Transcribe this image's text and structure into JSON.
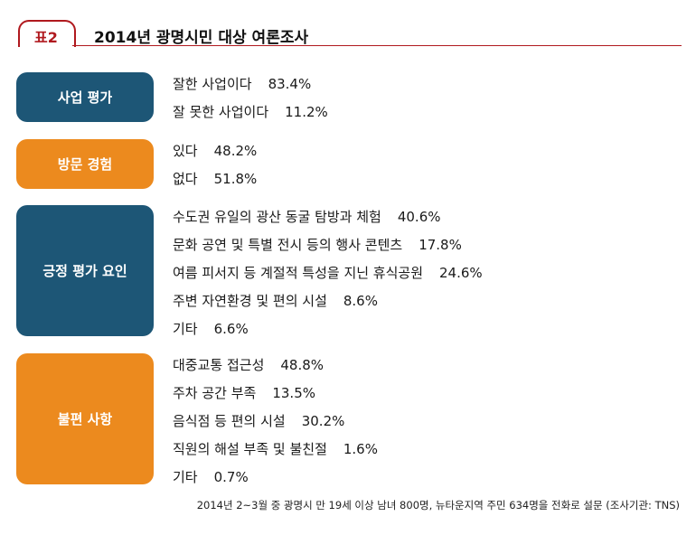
{
  "header": {
    "label": "표2",
    "title": "2014년 광명시민 대상 여론조사",
    "accent_color": "#b0191e"
  },
  "colors": {
    "navy": "#1d5676",
    "orange": "#ec8a1e"
  },
  "sections": [
    {
      "label": "사업 평가",
      "color": "navy",
      "items": [
        {
          "text": "잘한 사업이다",
          "pct": "83.4%"
        },
        {
          "text": "잘 못한 사업이다",
          "pct": "11.2%"
        }
      ]
    },
    {
      "label": "방문 경험",
      "color": "orange",
      "items": [
        {
          "text": "있다",
          "pct": "48.2%"
        },
        {
          "text": "없다",
          "pct": "51.8%"
        }
      ]
    },
    {
      "label": "긍정 평가 요인",
      "color": "navy",
      "items": [
        {
          "text": "수도권 유일의 광산 동굴 탐방과 체험",
          "pct": "40.6%"
        },
        {
          "text": "문화 공연 및 특별 전시 등의 행사 콘텐츠",
          "pct": "17.8%"
        },
        {
          "text": "여름 피서지 등 계절적 특성을 지닌 휴식공원",
          "pct": "24.6%"
        },
        {
          "text": "주변 자연환경 및 편의 시설",
          "pct": "8.6%"
        },
        {
          "text": "기타",
          "pct": "6.6%"
        }
      ]
    },
    {
      "label": "불편 사항",
      "color": "orange",
      "items": [
        {
          "text": "대중교통 접근성",
          "pct": "48.8%"
        },
        {
          "text": "주차 공간 부족",
          "pct": "13.5%"
        },
        {
          "text": "음식점 등 편의 시설",
          "pct": "30.2%"
        },
        {
          "text": "직원의 해설 부족 및 불친절",
          "pct": "1.6%"
        },
        {
          "text": "기타",
          "pct": "0.7%"
        }
      ]
    }
  ],
  "footnote": "2014년 2~3월 중 광명시 만 19세 이상 남녀 800명, 뉴타운지역 주민 634명을 전화로 설문 (조사기관: TNS)"
}
